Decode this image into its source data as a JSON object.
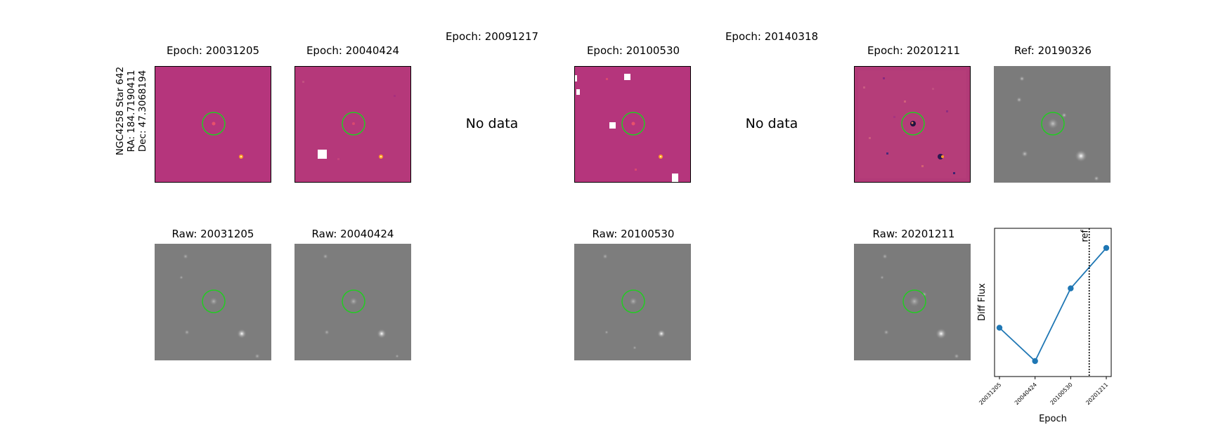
{
  "target": {
    "name": "NGC4258 Star 642",
    "ra": "RA: 184.7190411",
    "dec": "Dec: 47.3068194"
  },
  "epochs": [
    {
      "epoch_title": "Epoch: 20031205",
      "raw_title": "Raw: 20031205",
      "has_data": true
    },
    {
      "epoch_title": "Epoch: 20040424",
      "raw_title": "Raw: 20040424",
      "has_data": true
    },
    {
      "epoch_title": "Epoch: 20091217",
      "has_data": false,
      "no_data_text": "No data"
    },
    {
      "epoch_title": "Epoch: 20100530",
      "raw_title": "Raw: 20100530",
      "has_data": true
    },
    {
      "epoch_title": "Epoch: 20140318",
      "has_data": false,
      "no_data_text": "No data"
    },
    {
      "epoch_title": "Epoch: 20201211",
      "raw_title": "Raw: 20201211",
      "has_data": true
    }
  ],
  "reference": {
    "title": "Ref: 20190326"
  },
  "colors": {
    "diff_bg": "#b5357c",
    "circle": "#22cc22",
    "raw_bg": "#7e7e7e",
    "line": "#1f77b4"
  },
  "chart_data": {
    "type": "line",
    "x": [
      "20031205",
      "20040424",
      "20100530",
      "20201211"
    ],
    "values": [
      0.33,
      0.0,
      0.72,
      1.12
    ],
    "xlabel": "Epoch",
    "ylabel": "Diff Flux",
    "ref_label": "ref",
    "ref_position_between": [
      "20100530",
      "20201211"
    ],
    "ref_fraction": 0.52,
    "grid": false,
    "y_ticks_visible": false
  }
}
